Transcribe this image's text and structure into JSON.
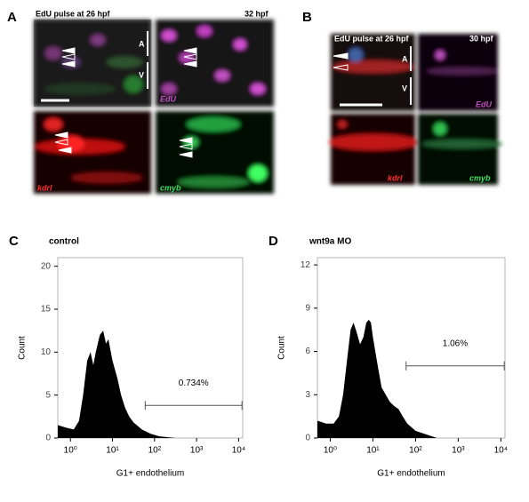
{
  "panels": {
    "A": {
      "letter": "A",
      "header": "EdU pulse at 26 hpf",
      "time": "32 hpf",
      "channels": [
        "EdU",
        "kdrl",
        "cmyb"
      ],
      "vessels": [
        "A",
        "V"
      ]
    },
    "B": {
      "letter": "B",
      "header": "EdU pulse at 26 hpf",
      "time": "30 hpf",
      "channels": [
        "EdU",
        "kdrl",
        "cmyb"
      ],
      "vessels": [
        "A",
        "V"
      ]
    }
  },
  "charts": [
    {
      "type": "area",
      "letter": "C",
      "title": "control",
      "xlabel": "G1+ endothelium",
      "ylabel": "Count",
      "xscale": "log",
      "color": "#000000",
      "x": [
        0.5,
        0.8,
        1.2,
        1.6,
        2,
        2.5,
        3,
        3.5,
        4,
        5,
        6,
        7,
        8,
        10,
        13,
        16,
        20,
        25,
        32,
        50,
        80,
        130,
        200,
        320
      ],
      "values": [
        1.5,
        1.2,
        1,
        2,
        5,
        9,
        10,
        8.5,
        10,
        12,
        12.5,
        11,
        11.5,
        9,
        7,
        5,
        3.5,
        2.5,
        1.8,
        1,
        0.5,
        0.2,
        0.1,
        0
      ],
      "xlim": [
        0.5,
        12500
      ],
      "ylim": [
        0,
        21
      ],
      "xticks": [
        {
          "value": 1,
          "label": "10⁰"
        },
        {
          "value": 10,
          "label": "10¹"
        },
        {
          "value": 100,
          "label": "10²"
        },
        {
          "value": 1000,
          "label": "10³"
        },
        {
          "value": 10000,
          "label": "10⁴"
        }
      ],
      "yticks": [
        0,
        5,
        10,
        15,
        20
      ],
      "gate": {
        "range": [
          60,
          12000
        ],
        "level": 3.8,
        "label": "0.734%"
      }
    },
    {
      "type": "area",
      "letter": "D",
      "title": "wnt9a MO",
      "xlabel": "G1+ endothelium",
      "ylabel": "Count",
      "xscale": "log",
      "color": "#000000",
      "x": [
        0.5,
        0.8,
        1.2,
        1.6,
        2,
        2.5,
        3,
        3.5,
        4,
        5,
        6,
        7,
        8,
        9,
        10,
        13,
        16,
        20,
        25,
        32,
        40,
        50,
        64,
        100,
        200,
        320
      ],
      "values": [
        1.2,
        1,
        1,
        1.5,
        3,
        5.5,
        7.5,
        8,
        7.5,
        6.5,
        7,
        8,
        8.2,
        8,
        7,
        5,
        3.5,
        3,
        2.5,
        2.2,
        2,
        1.5,
        1,
        0.5,
        0.2,
        0
      ],
      "xlim": [
        0.5,
        12500
      ],
      "ylim": [
        0,
        12.5
      ],
      "xticks": [
        {
          "value": 1,
          "label": "10⁰"
        },
        {
          "value": 10,
          "label": "10¹"
        },
        {
          "value": 100,
          "label": "10²"
        },
        {
          "value": 1000,
          "label": "10³"
        },
        {
          "value": 10000,
          "label": "10⁴"
        }
      ],
      "yticks": [
        0,
        3,
        6,
        9,
        12
      ],
      "gate": {
        "range": [
          60,
          12000
        ],
        "level": 5,
        "label": "1.06%"
      }
    }
  ]
}
